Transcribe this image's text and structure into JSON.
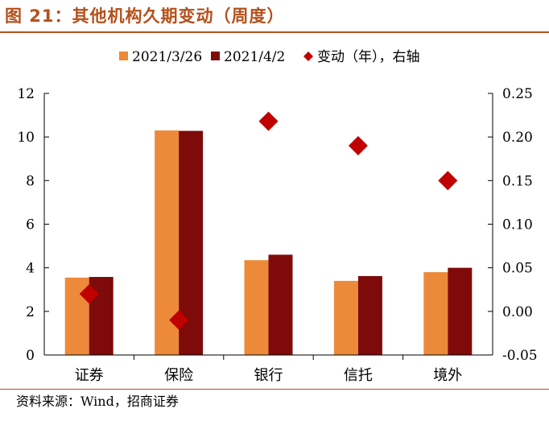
{
  "header": {
    "title": "图 21：其他机构久期变动（周度）"
  },
  "footer": {
    "source": "资料来源：Wind，招商证券"
  },
  "colors": {
    "series1": "#ED8A3A",
    "series2": "#7F0A0A",
    "change": "#C00000",
    "accent": "#B5501A"
  },
  "chart_data": {
    "type": "bar",
    "categories": [
      "证券",
      "保险",
      "银行",
      "信托",
      "境外"
    ],
    "series": [
      {
        "name": "2021/3/26",
        "values": [
          3.55,
          10.3,
          4.35,
          3.4,
          3.8
        ],
        "axis": "left"
      },
      {
        "name": "2021/4/2",
        "values": [
          3.58,
          10.28,
          4.6,
          3.62,
          4.0
        ],
        "axis": "left"
      },
      {
        "name": "变动（年），右轴",
        "type": "scatter",
        "marker": "diamond",
        "values": [
          0.02,
          -0.01,
          0.218,
          0.19,
          0.15
        ],
        "axis": "right"
      }
    ],
    "yleft": {
      "min": 0,
      "max": 12,
      "ticks": [
        "0",
        "2",
        "4",
        "6",
        "8",
        "10",
        "12"
      ]
    },
    "yright": {
      "min": -0.05,
      "max": 0.25,
      "ticks": [
        "-0.05",
        "0.00",
        "0.05",
        "0.10",
        "0.15",
        "0.20",
        "0.25"
      ]
    },
    "legend_position": "top",
    "grid": false
  }
}
